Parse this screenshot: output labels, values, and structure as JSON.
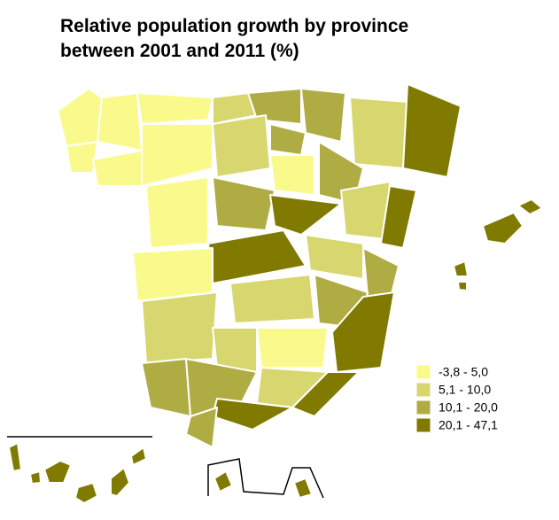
{
  "title": [
    "Relative population growth by province",
    "between 2001 and 2011 (%)"
  ],
  "legend": [
    {
      "label": "-3,8 - 5,0",
      "color": "#fafa8c"
    },
    {
      "label": "5,1 - 10,0",
      "color": "#d8d66e"
    },
    {
      "label": "10,1 - 20,0",
      "color": "#b0ac44"
    },
    {
      "label": "20,1 - 47,1",
      "color": "#807a00"
    }
  ]
}
